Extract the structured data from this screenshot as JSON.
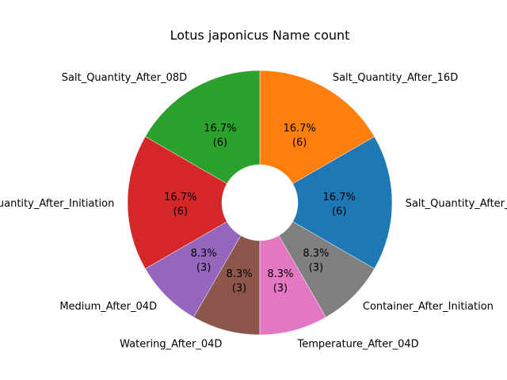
{
  "chart_data": {
    "type": "pie",
    "title": "Lotus japonicus Name count",
    "hole": "donut",
    "slices": [
      {
        "label": "Salt_Quantity_After_Initiation",
        "value": 6,
        "pct_text": "16.7%",
        "count_text": "(6)",
        "color": "#1f77b4"
      },
      {
        "label": "Salt_Quantity_After_16D",
        "value": 6,
        "pct_text": "16.7%",
        "count_text": "(6)",
        "color": "#ff7f0e"
      },
      {
        "label": "Salt_Quantity_After_08D",
        "value": 6,
        "pct_text": "16.7%",
        "count_text": "(6)",
        "color": "#2ca02c"
      },
      {
        "label": "Salt_Quantity_After_Initiation",
        "value": 6,
        "pct_text": "16.7%",
        "count_text": "(6)",
        "color": "#d62728"
      },
      {
        "label": "Medium_After_04D",
        "value": 3,
        "pct_text": "8.3%",
        "count_text": "(3)",
        "color": "#9467bd"
      },
      {
        "label": "Watering_After_04D",
        "value": 3,
        "pct_text": "8.3%",
        "count_text": "(3)",
        "color": "#8c564b"
      },
      {
        "label": "Temperature_After_04D",
        "value": 3,
        "pct_text": "8.3%",
        "count_text": "(3)",
        "color": "#e377c2"
      },
      {
        "label": "Container_After_Initiation",
        "value": 3,
        "pct_text": "8.3%",
        "count_text": "(3)",
        "color": "#7f7f7f"
      }
    ]
  }
}
